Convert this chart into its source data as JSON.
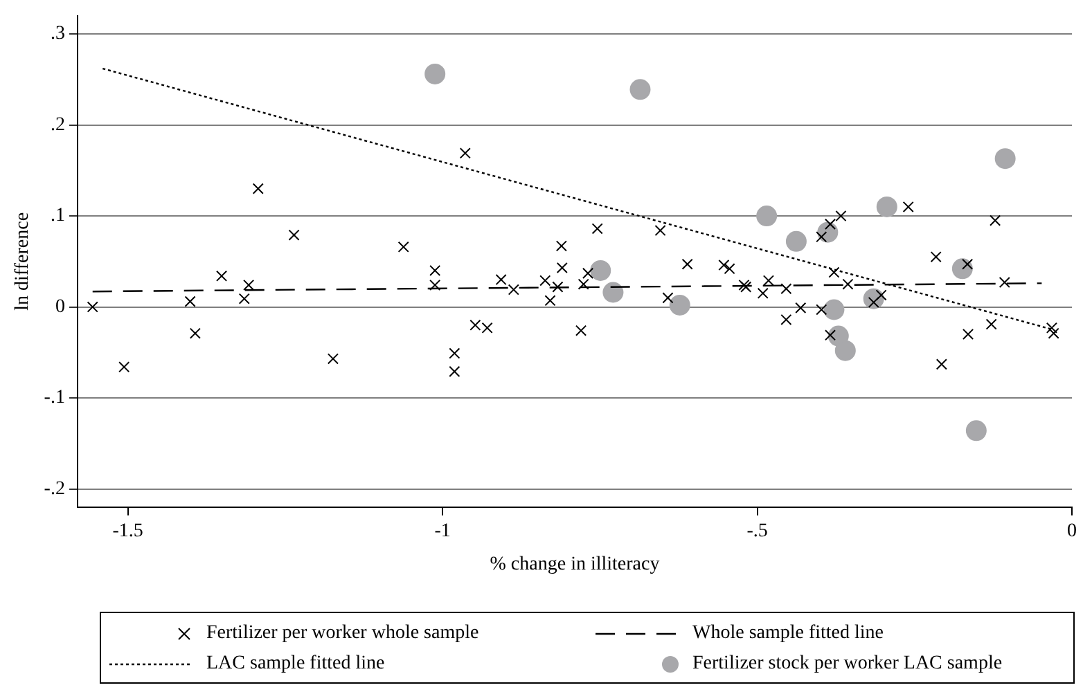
{
  "chart_data": {
    "type": "scatter",
    "xlabel": "% change in illiteracy",
    "ylabel": "ln difference",
    "xlim": [
      -1.58,
      0
    ],
    "ylim": [
      -0.22,
      0.32
    ],
    "xticks": [
      -1.5,
      -1,
      {
        "value": -0.5,
        "label": "-.5"
      },
      0
    ],
    "yticks": [
      {
        "value": -0.2,
        "label": "-.2"
      },
      {
        "value": -0.1,
        "label": "-.1"
      },
      0,
      {
        "value": 0.1,
        "label": ".1"
      },
      {
        "value": 0.2,
        "label": ".2"
      },
      {
        "value": 0.3,
        "label": ".3"
      }
    ],
    "grid": "y",
    "legend": "bottom",
    "series": [
      {
        "name": "Fertilizer per worker whole sample",
        "type": "scatter",
        "marker": "cross",
        "color": "#000000",
        "x": [
          -1.556,
          -1.506,
          -1.401,
          -1.393,
          -1.351,
          -1.308,
          -1.315,
          -1.293,
          -1.236,
          -1.174,
          -1.062,
          -0.964,
          -1.012,
          -1.012,
          -0.981,
          -0.981,
          -0.948,
          -0.929,
          -0.907,
          -0.887,
          -0.837,
          -0.829,
          -0.817,
          -0.811,
          -0.81,
          -0.776,
          -0.78,
          -0.769,
          -0.754,
          -0.654,
          -0.642,
          -0.611,
          -0.553,
          -0.544,
          -0.521,
          -0.518,
          -0.482,
          -0.491,
          -0.454,
          -0.454,
          -0.431,
          -0.398,
          -0.398,
          -0.384,
          -0.367,
          -0.378,
          -0.384,
          -0.356,
          -0.315,
          -0.303,
          -0.26,
          -0.216,
          -0.207,
          -0.166,
          -0.165,
          -0.128,
          -0.122,
          -0.107,
          -0.032,
          -0.029
        ],
        "values": [
          0.0,
          -0.066,
          0.006,
          -0.029,
          0.034,
          0.024,
          0.009,
          0.13,
          0.079,
          -0.057,
          0.066,
          0.169,
          0.04,
          0.024,
          -0.051,
          -0.071,
          -0.02,
          -0.023,
          0.03,
          0.019,
          0.029,
          0.007,
          0.022,
          0.067,
          0.043,
          0.025,
          -0.026,
          0.037,
          0.086,
          0.084,
          0.01,
          0.047,
          0.046,
          0.042,
          0.024,
          0.022,
          0.029,
          0.015,
          0.02,
          -0.014,
          -0.001,
          0.077,
          -0.003,
          0.091,
          0.1,
          0.038,
          -0.031,
          0.025,
          0.005,
          0.013,
          0.11,
          0.055,
          -0.063,
          0.047,
          -0.03,
          -0.019,
          0.095,
          0.027,
          -0.023,
          -0.029
        ]
      },
      {
        "name": "Whole sample fitted line",
        "type": "line",
        "marker": "none",
        "line_style": "dashed",
        "color": "#000000",
        "x": [
          -1.556,
          -0.048
        ],
        "values": [
          0.017,
          0.026
        ]
      },
      {
        "name": "LAC sample fitted line",
        "type": "line",
        "marker": "none",
        "line_style": "dotted",
        "color": "#000000",
        "x": [
          -1.54,
          -0.03
        ],
        "values": [
          0.262,
          -0.025
        ]
      },
      {
        "name": "Fertilizer stock per worker LAC sample",
        "type": "scatter",
        "marker": "circle",
        "color": "#a8a8ab",
        "x": [
          -1.012,
          -0.686,
          -0.749,
          -0.729,
          -0.623,
          -0.485,
          -0.438,
          -0.388,
          -0.378,
          -0.371,
          -0.36,
          -0.315,
          -0.294,
          -0.174,
          -0.152,
          -0.106
        ],
        "values": [
          0.256,
          0.239,
          0.04,
          0.016,
          0.002,
          0.1,
          0.072,
          0.082,
          -0.003,
          -0.032,
          -0.048,
          0.009,
          0.11,
          0.042,
          -0.136,
          0.163
        ]
      }
    ]
  }
}
